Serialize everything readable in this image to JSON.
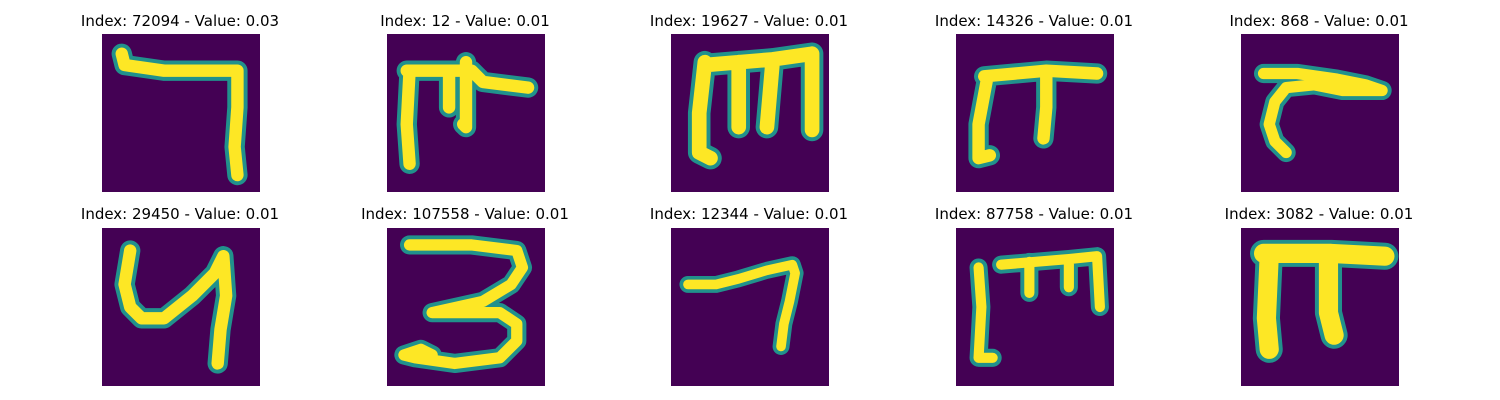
{
  "panels": [
    {
      "title": "Index: 72094 - Value: 0.03"
    },
    {
      "title": "Index: 12 - Value: 0.01"
    },
    {
      "title": "Index: 19627 - Value: 0.01"
    },
    {
      "title": "Index: 14326 - Value: 0.01"
    },
    {
      "title": "Index: 868 - Value: 0.01"
    },
    {
      "title": "Index: 29450 - Value: 0.01"
    },
    {
      "title": "Index: 107558 - Value: 0.01"
    },
    {
      "title": "Index: 12344 - Value: 0.01"
    },
    {
      "title": "Index: 87758 - Value: 0.01"
    },
    {
      "title": "Index: 3082 - Value: 0.01"
    }
  ],
  "colors": {
    "background": "#440154",
    "stroke_core": "#fde725",
    "stroke_edge": "#21918c"
  }
}
